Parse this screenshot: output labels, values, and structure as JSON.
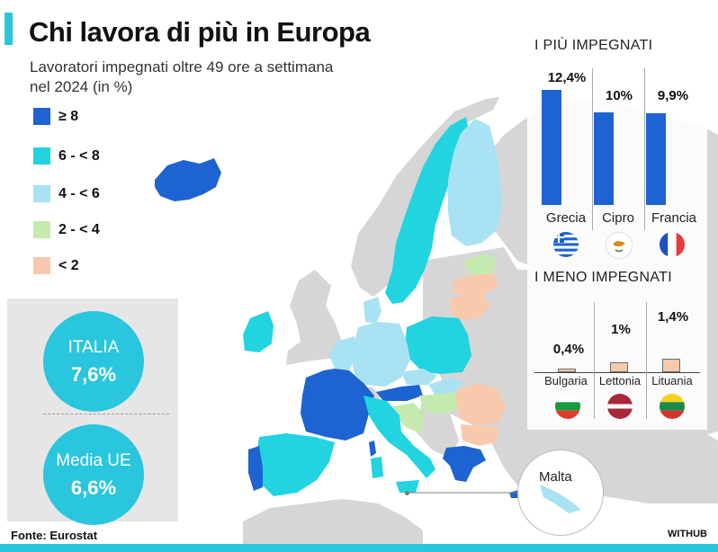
{
  "title": "Chi lavora di più in Europa",
  "subtitle_line1": "Lavoratori impegnati oltre 49 ore a settimana",
  "subtitle_line2": "nel 2024 (in %)",
  "legend": [
    {
      "label": "≥ 8",
      "color": "#1d63d1"
    },
    {
      "label": "6 - < 8",
      "color": "#22d3e0"
    },
    {
      "label": "4 - < 6",
      "color": "#a8e2f3"
    },
    {
      "label": "2 - < 4",
      "color": "#c5eab0"
    },
    {
      "label": "< 2",
      "color": "#f8c9ac"
    }
  ],
  "colors": {
    "accent": "#29c6dd",
    "bar_top": "#1d63d1",
    "bar_bottom": "#f8c9ac",
    "non_eu_land": "#d6d6d6",
    "sea": "#ffffff"
  },
  "italia": {
    "label": "ITALIA",
    "value": "7,6%"
  },
  "media_ue": {
    "label": "Media UE",
    "value": "6,6%"
  },
  "top_heading": "I PIÙ IMPEGNATI",
  "bottom_heading": "I MENO IMPEGNATI",
  "chart_data": [
    {
      "type": "bar",
      "title": "I PIÙ IMPEGNATI",
      "categories": [
        "Grecia",
        "Cipro",
        "Francia"
      ],
      "values": [
        12.4,
        10,
        9.9
      ],
      "value_labels": [
        "12,4%",
        "10%",
        "9,9%"
      ],
      "flags": [
        "greece-flag",
        "cyprus-flag",
        "france-flag"
      ]
    },
    {
      "type": "bar",
      "title": "I MENO IMPEGNATI",
      "categories": [
        "Bulgaria",
        "Lettonia",
        "Lituania"
      ],
      "values": [
        0.4,
        1,
        1.4
      ],
      "value_labels": [
        "0,4%",
        "1%",
        "1,4%"
      ],
      "flags": [
        "bulgaria-flag",
        "latvia-flag",
        "lithuania-flag"
      ]
    }
  ],
  "malta_label": "Malta",
  "source": "Fonte: Eurostat",
  "brand": "WITHUB"
}
